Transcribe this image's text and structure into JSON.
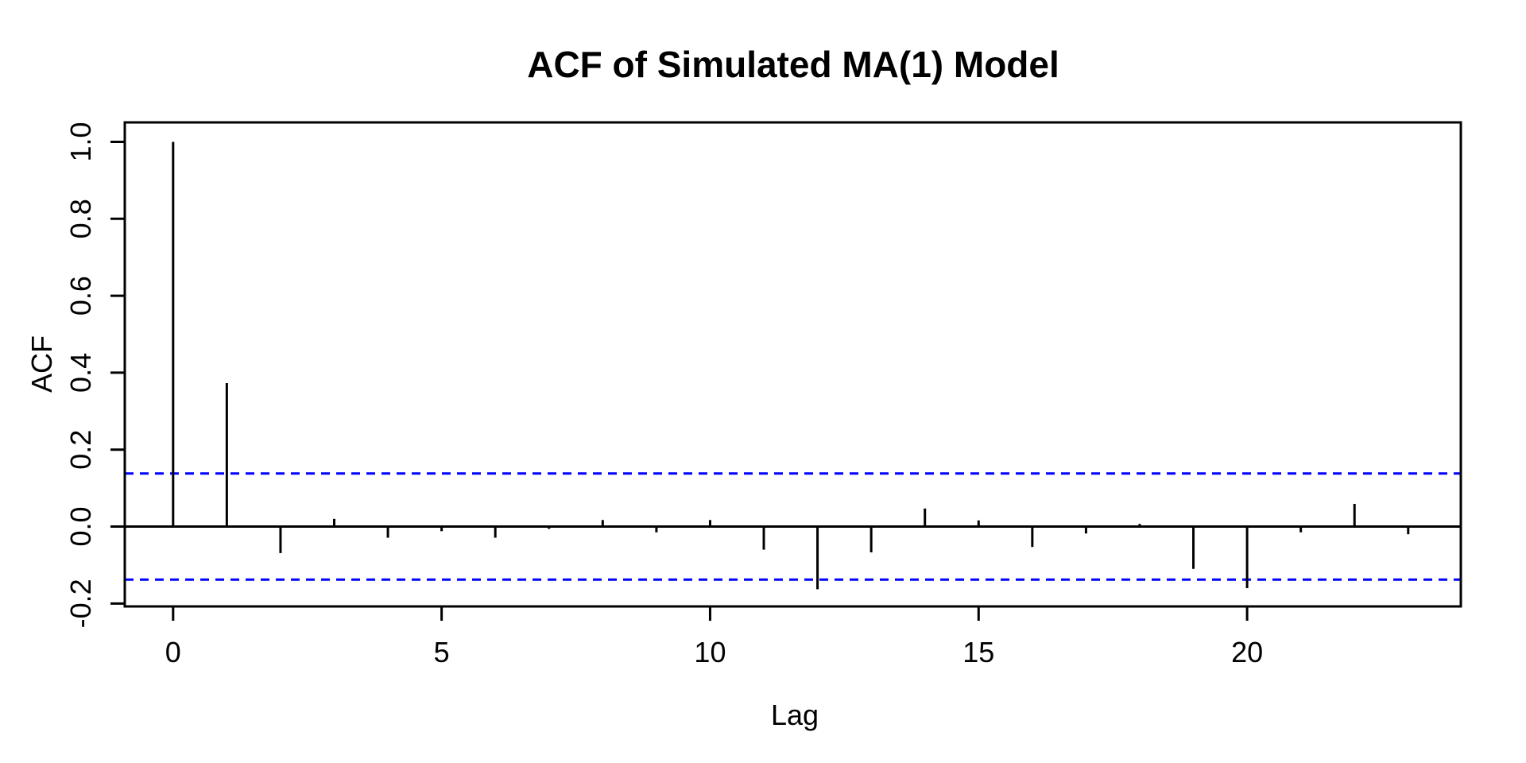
{
  "title": "ACF of Simulated MA(1) Model",
  "chart_data": {
    "type": "stem",
    "title": "ACF of Simulated MA(1) Model",
    "xlabel": "Lag",
    "ylabel": "ACF",
    "x": [
      0,
      1,
      2,
      3,
      4,
      5,
      6,
      7,
      8,
      9,
      10,
      11,
      12,
      13,
      14,
      15,
      16,
      17,
      18,
      19,
      20,
      21,
      22,
      23
    ],
    "values": [
      1.0,
      0.373,
      -0.069,
      0.02,
      -0.029,
      -0.012,
      -0.029,
      -0.006,
      0.017,
      -0.015,
      0.017,
      -0.06,
      -0.163,
      -0.067,
      0.047,
      0.016,
      -0.053,
      -0.018,
      0.007,
      -0.11,
      -0.16,
      -0.015,
      0.059,
      -0.02
    ],
    "confidence_bands": {
      "upper": 0.138,
      "lower": -0.138,
      "line_style": "dashed",
      "color": "#0000FF"
    },
    "x_ticks": [
      0,
      5,
      10,
      15,
      20
    ],
    "y_ticks": [
      -0.2,
      0.0,
      0.2,
      0.4,
      0.6,
      0.8,
      1.0
    ],
    "y_tick_labels": [
      "-0.2",
      "0.0",
      "0.2",
      "0.4",
      "0.6",
      "0.8",
      "1.0"
    ],
    "xlim": [
      -0.9,
      23.98
    ],
    "ylim": [
      -0.2076,
      1.0506
    ],
    "grid": false,
    "legend": null,
    "zero_line": true,
    "colors": {
      "stem": "#000000",
      "axis": "#000000",
      "conf_band": "#0000FF",
      "background": "#FFFFFF"
    }
  }
}
